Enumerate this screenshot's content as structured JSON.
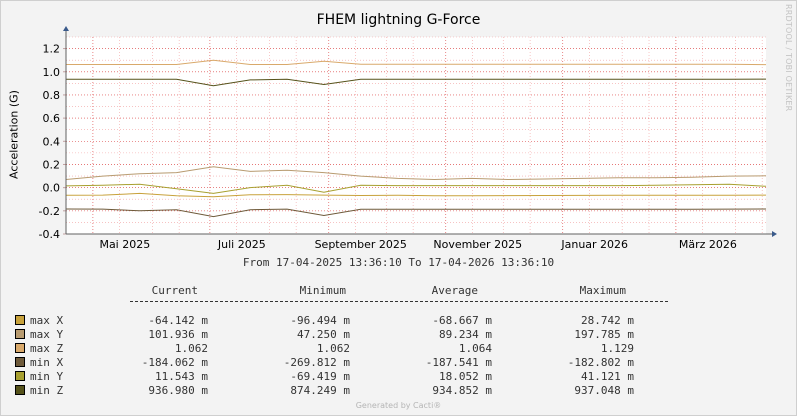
{
  "chart_data": {
    "type": "line",
    "title": "FHEM lightning G-Force",
    "ylabel": "Acceleration (G)",
    "xlabel": "",
    "ylim": [
      -0.4,
      1.3
    ],
    "yticks": [
      "1.2",
      "1.0",
      "0.8",
      "0.6",
      "0.4",
      "0.2",
      "0.0",
      "-0.2",
      "-0.4"
    ],
    "ytick_values": [
      1.2,
      1.0,
      0.8,
      0.6,
      0.4,
      0.2,
      0.0,
      -0.2,
      -0.4
    ],
    "xticks": [
      "Mai 2025",
      "Juli 2025",
      "September 2025",
      "November 2025",
      "Januar 2026",
      "März 2026"
    ],
    "x_range": [
      "2025-04-17",
      "2026-04-17"
    ],
    "x_tick_dates": [
      "2025-05-01",
      "2025-07-01",
      "2025-09-01",
      "2025-11-01",
      "2026-01-01",
      "2026-03-01"
    ],
    "grid": true,
    "series": [
      {
        "name": "max X",
        "color": "#c8a23c",
        "values": [
          -0.066,
          -0.064,
          -0.05,
          -0.07,
          -0.078,
          -0.062,
          -0.06,
          -0.064,
          -0.068,
          -0.066,
          -0.07,
          -0.07,
          -0.069,
          -0.068,
          -0.067,
          -0.066,
          -0.066,
          -0.066,
          -0.066,
          -0.064
        ]
      },
      {
        "name": "max Y",
        "color": "#b89b70",
        "values": [
          0.07,
          0.1,
          0.12,
          0.13,
          0.18,
          0.14,
          0.15,
          0.13,
          0.1,
          0.08,
          0.07,
          0.08,
          0.07,
          0.075,
          0.08,
          0.085,
          0.085,
          0.09,
          0.1,
          0.102
        ]
      },
      {
        "name": "max Z",
        "color": "#d9a96b",
        "values": [
          1.063,
          1.063,
          1.063,
          1.063,
          1.1,
          1.063,
          1.063,
          1.09,
          1.064,
          1.064,
          1.064,
          1.064,
          1.064,
          1.064,
          1.064,
          1.064,
          1.064,
          1.064,
          1.064,
          1.062
        ]
      },
      {
        "name": "min X",
        "color": "#6e5a3a",
        "values": [
          -0.184,
          -0.185,
          -0.2,
          -0.19,
          -0.25,
          -0.19,
          -0.185,
          -0.24,
          -0.186,
          -0.186,
          -0.187,
          -0.187,
          -0.187,
          -0.187,
          -0.187,
          -0.187,
          -0.186,
          -0.186,
          -0.185,
          -0.184
        ]
      },
      {
        "name": "min Y",
        "color": "#a8a030",
        "values": [
          0.015,
          0.02,
          0.03,
          -0.01,
          -0.05,
          0.0,
          0.02,
          -0.04,
          0.02,
          0.018,
          0.018,
          0.018,
          0.018,
          0.018,
          0.018,
          0.018,
          0.02,
          0.025,
          0.03,
          0.012
        ]
      },
      {
        "name": "min Z",
        "color": "#55521a",
        "values": [
          0.935,
          0.935,
          0.935,
          0.935,
          0.88,
          0.93,
          0.935,
          0.89,
          0.935,
          0.935,
          0.935,
          0.935,
          0.935,
          0.935,
          0.935,
          0.935,
          0.935,
          0.935,
          0.935,
          0.937
        ]
      }
    ]
  },
  "vendor_text": "RRDTOOL / TOBI OETIKER",
  "date_range": "From 17-04-2025 13:36:10 To 17-04-2026 13:36:10",
  "legend": {
    "headers": [
      "Current",
      "Minimum",
      "Average",
      "Maximum"
    ],
    "rows": [
      {
        "name": "max X",
        "color": "#c8a23c",
        "current": "-64.142 m",
        "minimum": "-96.494 m",
        "average": "-68.667 m",
        "maximum": "28.742 m"
      },
      {
        "name": "max Y",
        "color": "#b89b70",
        "current": "101.936 m",
        "minimum": "47.250 m",
        "average": "89.234 m",
        "maximum": "197.785 m"
      },
      {
        "name": "max Z",
        "color": "#d9a96b",
        "current": "1.062",
        "minimum": "1.062",
        "average": "1.064",
        "maximum": "1.129"
      },
      {
        "name": "min X",
        "color": "#6e5a3a",
        "current": "-184.062 m",
        "minimum": "-269.812 m",
        "average": "-187.541 m",
        "maximum": "-182.802 m"
      },
      {
        "name": "min Y",
        "color": "#a8a030",
        "current": "11.543 m",
        "minimum": "-69.419 m",
        "average": "18.052 m",
        "maximum": "41.121 m"
      },
      {
        "name": "min Z",
        "color": "#55521a",
        "current": "936.980 m",
        "minimum": "874.249 m",
        "average": "934.852 m",
        "maximum": "937.048 m"
      }
    ]
  },
  "footer": "Generated by Cacti®"
}
